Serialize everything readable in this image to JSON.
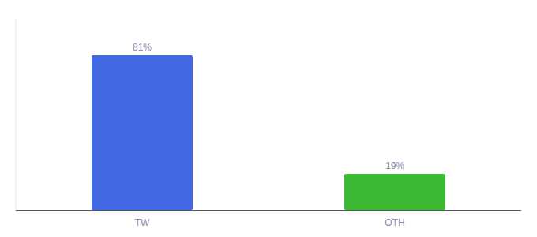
{
  "chart_data": {
    "type": "bar",
    "categories": [
      "TW",
      "OTH"
    ],
    "values": [
      81,
      19
    ],
    "value_labels": [
      "81%",
      "19%"
    ],
    "colors": [
      "#4169E1",
      "#3CB832"
    ],
    "ylim": [
      0,
      100
    ],
    "data_labels": true,
    "tick_labels": "x"
  }
}
